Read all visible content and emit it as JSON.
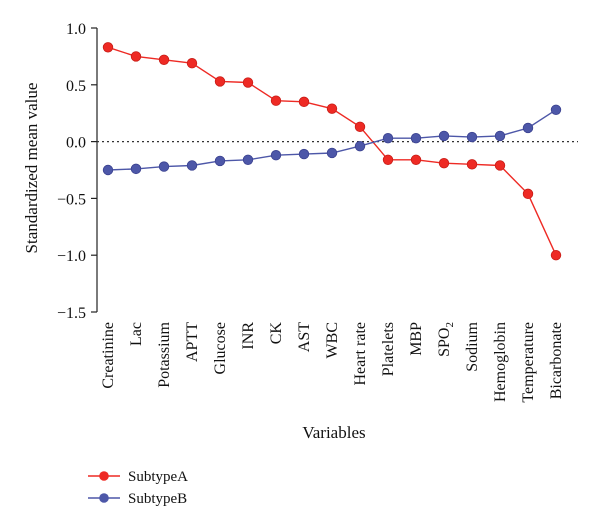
{
  "chart_data": {
    "type": "line",
    "ylabel": "Standardized mean value",
    "xlabel": "Variables",
    "categories": [
      "Creatinine",
      "Lac",
      "Potassium",
      "APTT",
      "Glucose",
      "INR",
      "CK",
      "AST",
      "WBC",
      "Heart rate",
      "Platelets",
      "MBP",
      "SPO",
      "Sodium",
      "Hemoglobin",
      "Temperature",
      "Bicarbonate"
    ],
    "category_subscripts": {
      "SPO": "2"
    },
    "ylim": [
      -1.5,
      1.0
    ],
    "yticks": [
      "1.0",
      "0.5",
      "0.0",
      "-0.5",
      "-1.0",
      "-1.5"
    ],
    "ytick_values": [
      1.0,
      0.5,
      0.0,
      -0.5,
      -1.0,
      -1.5
    ],
    "reference_line": 0.0,
    "grid": false,
    "legend_position": "bottom-left",
    "series": [
      {
        "name": "SubtypeA",
        "color": "#ee2a24",
        "values": [
          0.83,
          0.75,
          0.72,
          0.69,
          0.53,
          0.52,
          0.36,
          0.35,
          0.29,
          0.13,
          -0.16,
          -0.16,
          -0.19,
          -0.2,
          -0.21,
          -0.46,
          -1.0
        ]
      },
      {
        "name": "SubtypeB",
        "color": "#4d57a8",
        "values": [
          -0.25,
          -0.24,
          -0.22,
          -0.21,
          -0.17,
          -0.16,
          -0.12,
          -0.11,
          -0.1,
          -0.04,
          0.03,
          0.03,
          0.05,
          0.04,
          0.05,
          0.12,
          0.28
        ]
      }
    ]
  }
}
